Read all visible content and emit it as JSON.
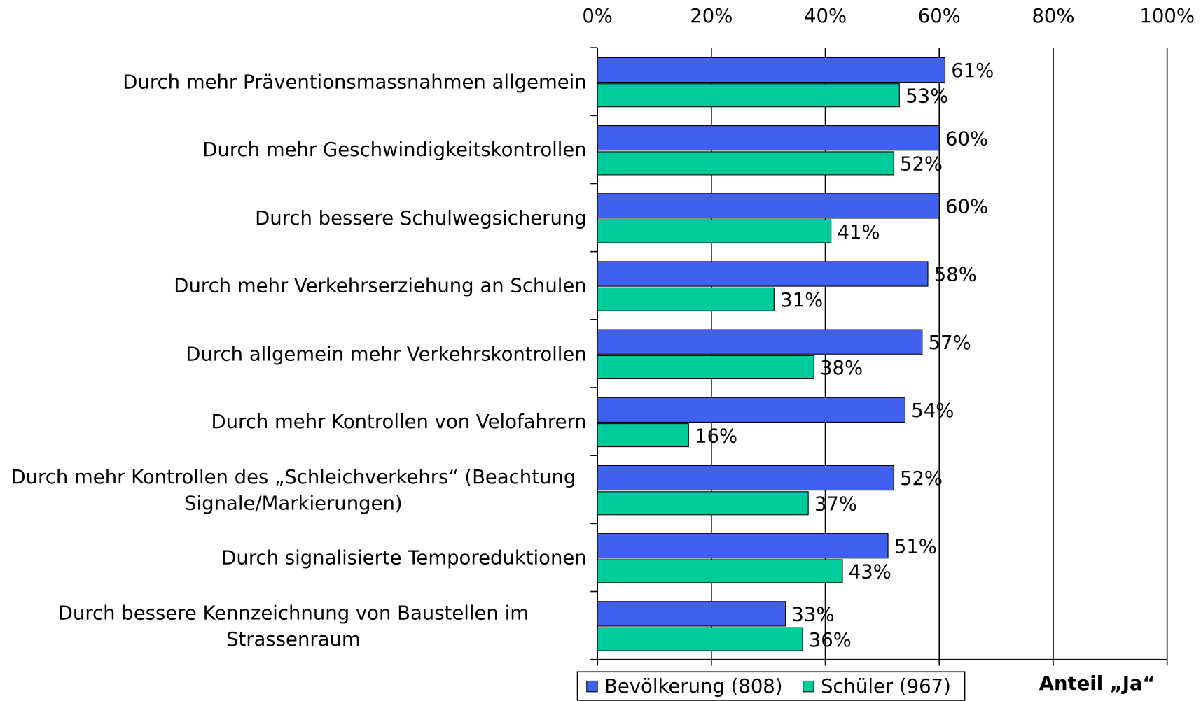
{
  "chart_data": {
    "type": "bar",
    "orientation": "horizontal",
    "categories": [
      "Durch mehr Präventionsmassnahmen allgemein",
      "Durch mehr Geschwindigkeitskontrollen",
      "Durch bessere Schulwegsicherung",
      "Durch mehr Verkehrserziehung an Schulen",
      "Durch allgemein mehr Verkehrskontrollen",
      "Durch mehr Kontrollen von Velofahrern",
      "Durch mehr Kontrollen des „Schleichverkehrs“ (Beachtung Signale/Markierungen)",
      "Durch signalisierte Temporeduktionen",
      "Durch bessere Kennzeichnung von Baustellen im Strassenraum"
    ],
    "series": [
      {
        "name": "Bevölkerung (808)",
        "color": "#4060f0",
        "values": [
          61,
          60,
          60,
          58,
          57,
          54,
          52,
          51,
          33
        ],
        "value_labels": [
          "61%",
          "60%",
          "60%",
          "58%",
          "57%",
          "54%",
          "52%",
          "51%",
          "33%"
        ]
      },
      {
        "name": "Schüler (967)",
        "color": "#00cc99",
        "values": [
          53,
          52,
          41,
          31,
          38,
          16,
          37,
          43,
          36
        ],
        "value_labels": [
          "53%",
          "52%",
          "41%",
          "31%",
          "38%",
          "16%",
          "37%",
          "43%",
          "36%"
        ]
      }
    ],
    "xlabel": "Anteil „Ja“",
    "xlim": [
      0,
      100
    ],
    "xticks": [
      {
        "value": 0,
        "label": "0%"
      },
      {
        "value": 20,
        "label": "20%"
      },
      {
        "value": 40,
        "label": "40%"
      },
      {
        "value": 60,
        "label": "60%"
      },
      {
        "value": 80,
        "label": "80%"
      },
      {
        "value": 100,
        "label": "100%"
      }
    ],
    "grid": true,
    "legend": "bottom"
  }
}
